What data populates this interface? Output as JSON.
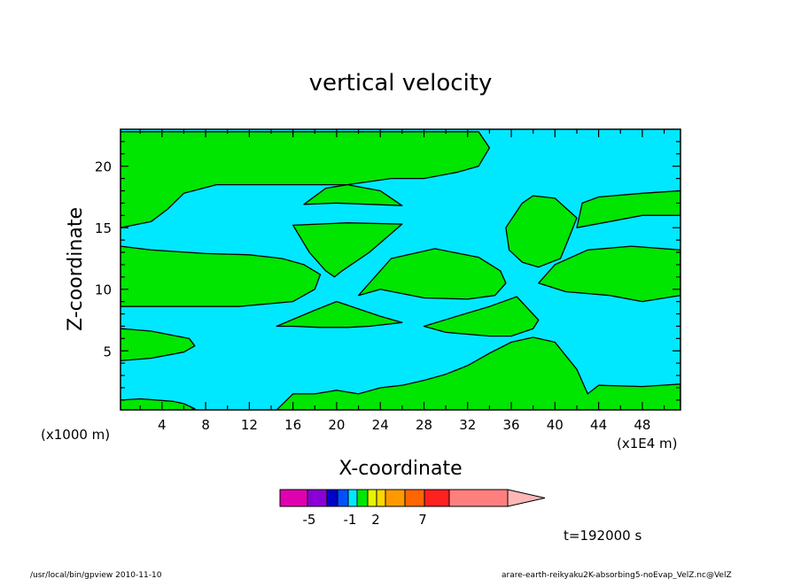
{
  "chart_data": {
    "type": "contour",
    "title": "vertical velocity",
    "xlabel": "X-coordinate",
    "ylabel": "Z-coordinate",
    "x_unit_left": "(x1000 m)",
    "x_unit_right": "(x1E4 m)",
    "xlim": [
      0.2,
      51.5
    ],
    "ylim": [
      0.2,
      23
    ],
    "x_ticks": [
      "4",
      "8",
      "12",
      "16",
      "20",
      "24",
      "28",
      "32",
      "36",
      "40",
      "44",
      "48"
    ],
    "y_ticks": [
      "5",
      "10",
      "15",
      "20"
    ],
    "colors": {
      "positive": "#00e600",
      "negative": "#00e8ff",
      "outline": "#000000"
    },
    "regions": [
      {
        "sign": "positive",
        "x": [
          0.2,
          0.2,
          2,
          5,
          6,
          7,
          6.5,
          4,
          1
        ],
        "y": [
          0.2,
          1,
          1.1,
          0.9,
          0.7,
          0.3,
          0.2,
          0.2,
          0.2
        ]
      },
      {
        "sign": "positive",
        "x": [
          0.2,
          0.2,
          3,
          6.5,
          7,
          6,
          3
        ],
        "y": [
          4.2,
          6.8,
          6.6,
          6,
          5.4,
          4.9,
          4.4
        ]
      },
      {
        "sign": "positive",
        "x": [
          0.2,
          0.2,
          3,
          8,
          12,
          15,
          17,
          18.5,
          18,
          16,
          11,
          5
        ],
        "y": [
          8.6,
          13.5,
          13.2,
          12.9,
          12.8,
          12.5,
          12,
          11.2,
          10,
          9,
          8.6,
          8.6
        ]
      },
      {
        "sign": "positive",
        "x": [
          0.2,
          0.2,
          2,
          5,
          10,
          15,
          20,
          26,
          30,
          33,
          34,
          33,
          31,
          28,
          25,
          21,
          14,
          9,
          6,
          4.5,
          3
        ],
        "y": [
          15,
          22.8,
          22.8,
          22.8,
          22.8,
          22.8,
          22.8,
          22.8,
          22.8,
          22.8,
          21.5,
          20,
          19.5,
          19,
          19,
          18.5,
          18.5,
          18.5,
          17.8,
          16.5,
          15.5
        ]
      },
      {
        "sign": "positive",
        "x": [
          16,
          17.5,
          19,
          19.8,
          20.5,
          23,
          26,
          21
        ],
        "y": [
          15.2,
          13,
          11.5,
          11,
          11.5,
          13,
          15.3,
          15.4
        ]
      },
      {
        "sign": "positive",
        "x": [
          17,
          20,
          26,
          24,
          21,
          19
        ],
        "y": [
          16.9,
          17,
          16.8,
          18,
          18.5,
          18.2
        ]
      },
      {
        "sign": "positive",
        "x": [
          22,
          24,
          28,
          32,
          34.5,
          35.5,
          35,
          33,
          29,
          25
        ],
        "y": [
          9.5,
          10,
          9.3,
          9.2,
          9.5,
          10.5,
          11.5,
          12.6,
          13.3,
          12.5
        ]
      },
      {
        "sign": "positive",
        "x": [
          14.5,
          18,
          20,
          24,
          26,
          23,
          21,
          18.5,
          16
        ],
        "y": [
          7,
          8.3,
          9,
          7.8,
          7.3,
          7,
          6.9,
          6.9,
          7
        ]
      },
      {
        "sign": "positive",
        "x": [
          35.5,
          37,
          38,
          40,
          42,
          41.2,
          40.5,
          38.5,
          37,
          35.8,
          35.5
        ],
        "y": [
          15,
          17,
          17.6,
          17.4,
          15.8,
          14,
          12.5,
          11.8,
          12.2,
          13.2,
          15
        ]
      },
      {
        "sign": "positive",
        "x": [
          42,
          45,
          48,
          51.5,
          51.5,
          48,
          44,
          42.5
        ],
        "y": [
          15,
          15.5,
          16,
          16,
          18,
          17.8,
          17.5,
          17
        ]
      },
      {
        "sign": "positive",
        "x": [
          38.5,
          41,
          45,
          48,
          51.5,
          51.5,
          47,
          43,
          40
        ],
        "y": [
          10.5,
          9.8,
          9.5,
          9,
          9.5,
          13.2,
          13.5,
          13.2,
          12
        ]
      },
      {
        "sign": "positive",
        "x": [
          28,
          31,
          34,
          36.5,
          38.5,
          38,
          36,
          34,
          30
        ],
        "y": [
          7,
          7.8,
          8.6,
          9.4,
          7.5,
          6.8,
          6.2,
          6.2,
          6.5
        ]
      },
      {
        "sign": "positive",
        "x": [
          14.5,
          16,
          18,
          20,
          22,
          24,
          26,
          28,
          30,
          32,
          34,
          36,
          38,
          40,
          41,
          42,
          43,
          44,
          48,
          51.5,
          51.5,
          47,
          44,
          40,
          37,
          34,
          31,
          28,
          25,
          22
        ],
        "y": [
          0.2,
          1.5,
          1.5,
          1.8,
          1.5,
          2,
          2.2,
          2.6,
          3.1,
          3.8,
          4.8,
          5.7,
          6.1,
          5.7,
          4.6,
          3.5,
          1.5,
          2.2,
          2.1,
          2.3,
          0.2,
          0.2,
          0.2,
          0.2,
          0.2,
          0.2,
          0.2,
          0.2,
          0.2,
          0.2
        ]
      }
    ],
    "colorbar": {
      "tick_labels": [
        "-5",
        "-1",
        "2",
        "7"
      ],
      "colors": [
        "#e000b0",
        "#8a00d6",
        "#0000c8",
        "#0050ff",
        "#00e8ff",
        "#00e600",
        "#e6f500",
        "#ffd700",
        "#ff9900",
        "#ff6600",
        "#ff2020",
        "#ff7f7f",
        "#ffb6b6"
      ]
    },
    "time_label": "t=192000 s",
    "footer_left": "/usr/local/bin/gpview  2010-11-10",
    "footer_right": "arare-earth-reikyaku2K-absorbing5-noEvap_VelZ.nc@VelZ"
  }
}
